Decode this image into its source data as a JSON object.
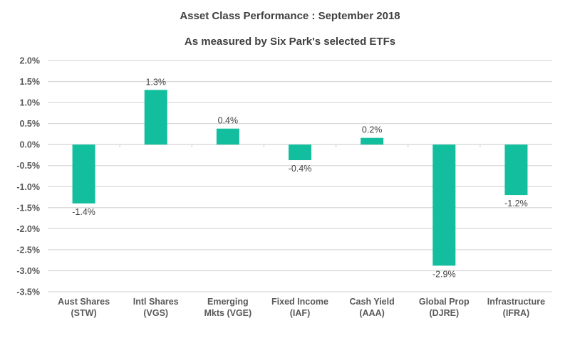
{
  "chart_data": {
    "type": "bar",
    "title": "Asset Class Performance : September 2018",
    "subtitle": "As measured by Six Park's selected ETFs",
    "categories": [
      [
        "Aust Shares",
        "(STW)"
      ],
      [
        "Intl Shares",
        "(VGS)"
      ],
      [
        "Emerging",
        "Mkts (VGE)"
      ],
      [
        "Fixed Income",
        "(IAF)"
      ],
      [
        "Cash Yield",
        "(AAA)"
      ],
      [
        "Global Prop",
        "(DJRE)"
      ],
      [
        "Infrastructure",
        "(IFRA)"
      ]
    ],
    "values": [
      -1.4,
      1.3,
      0.38,
      -0.37,
      0.16,
      -2.88,
      -1.2
    ],
    "data_labels": [
      "-1.4%",
      "1.3%",
      "0.4%",
      "-0.4%",
      "0.2%",
      "-2.9%",
      "-1.2%"
    ],
    "yticks": [
      "2.0%",
      "1.5%",
      "1.0%",
      "0.5%",
      "0.0%",
      "-0.5%",
      "-1.0%",
      "-1.5%",
      "-2.0%",
      "-2.5%",
      "-3.0%",
      "-3.5%"
    ],
    "ylim": [
      -3.5,
      2.0
    ],
    "yunit": "%",
    "grid": true,
    "legend": "none",
    "bar_color": "#13BE9E",
    "grid_color": "#D9D9D9"
  }
}
